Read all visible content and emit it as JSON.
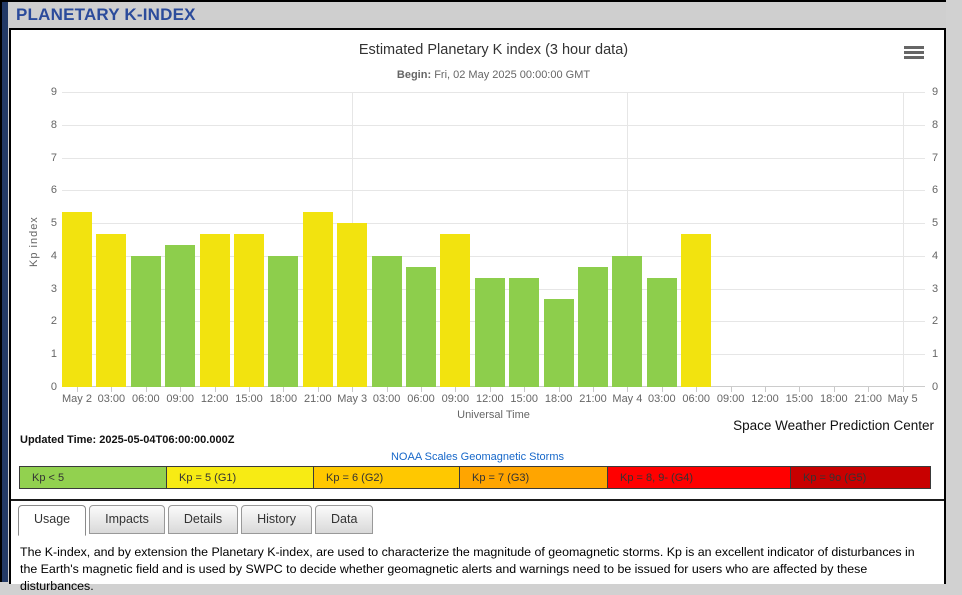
{
  "page": {
    "header_title": "PLANETARY K-INDEX",
    "credit": "Space Weather Prediction Center",
    "updated_time_label": "Updated Time:",
    "updated_time_value": "2025-05-04T06:00:00.000Z",
    "noaa_scales_link": "NOAA Scales Geomagnetic Storms"
  },
  "colors": {
    "header_navy": "#2B4B9B",
    "left_stripe_navy": "#233A66",
    "link_blue": "#1667C9",
    "bar_yellow": "#F2E30F",
    "bar_green": "#8DCE4C",
    "grid_line": "#E6E6E6",
    "axis_text": "#666666",
    "scale_green": "#92D14F",
    "scale_yellow": "#F7EB14",
    "scale_orange": "#FFC800",
    "scale_dark_orange": "#FFA500",
    "scale_red": "#FF0000",
    "scale_dark_red": "#C80000"
  },
  "chart_data": {
    "type": "bar",
    "title": "Estimated Planetary K index (3 hour data)",
    "subtitle": {
      "label": "Begin:",
      "value": "Fri, 02 May 2025 00:00:00 GMT"
    },
    "xlabel": "Universal Time",
    "ylabel": "Kp index",
    "ylim": [
      0,
      9
    ],
    "y_ticks": [
      0,
      1,
      2,
      3,
      4,
      5,
      6,
      7,
      8,
      9
    ],
    "grid": "horizontal gridlines every 1 Kp; vertical gridlines at day boundaries; y labels on both sides",
    "legend_position": "none",
    "x_tick_labels": [
      "May 2",
      "03:00",
      "06:00",
      "09:00",
      "12:00",
      "15:00",
      "18:00",
      "21:00",
      "May 3",
      "03:00",
      "06:00",
      "09:00",
      "12:00",
      "15:00",
      "18:00",
      "21:00",
      "May 4",
      "03:00",
      "06:00",
      "09:00",
      "12:00",
      "15:00",
      "18:00",
      "21:00",
      "May 5"
    ],
    "day_boundary_tick_indices": [
      8,
      16,
      24
    ],
    "bar_color_rule": "yellow if Kp rounds to 5 or more (>= 4.67), green otherwise",
    "bars": [
      {
        "time": "May 2 00:00",
        "kp": 5.33,
        "color": "yellow"
      },
      {
        "time": "May 2 03:00",
        "kp": 4.67,
        "color": "yellow"
      },
      {
        "time": "May 2 06:00",
        "kp": 4.0,
        "color": "green"
      },
      {
        "time": "May 2 09:00",
        "kp": 4.33,
        "color": "green"
      },
      {
        "time": "May 2 12:00",
        "kp": 4.67,
        "color": "yellow"
      },
      {
        "time": "May 2 15:00",
        "kp": 4.67,
        "color": "yellow"
      },
      {
        "time": "May 2 18:00",
        "kp": 4.0,
        "color": "green"
      },
      {
        "time": "May 2 21:00",
        "kp": 5.33,
        "color": "yellow"
      },
      {
        "time": "May 3 00:00",
        "kp": 5.0,
        "color": "yellow"
      },
      {
        "time": "May 3 03:00",
        "kp": 4.0,
        "color": "green"
      },
      {
        "time": "May 3 06:00",
        "kp": 3.67,
        "color": "green"
      },
      {
        "time": "May 3 09:00",
        "kp": 4.67,
        "color": "yellow"
      },
      {
        "time": "May 3 12:00",
        "kp": 3.33,
        "color": "green"
      },
      {
        "time": "May 3 15:00",
        "kp": 3.33,
        "color": "green"
      },
      {
        "time": "May 3 18:00",
        "kp": 2.67,
        "color": "green"
      },
      {
        "time": "May 3 21:00",
        "kp": 3.67,
        "color": "green"
      },
      {
        "time": "May 4 00:00",
        "kp": 4.0,
        "color": "green"
      },
      {
        "time": "May 4 03:00",
        "kp": 3.33,
        "color": "green"
      },
      {
        "time": "May 4 06:00",
        "kp": 4.67,
        "color": "yellow"
      }
    ]
  },
  "scale_legend": {
    "cells": [
      {
        "label": "Kp < 5",
        "color_key": "scale_green"
      },
      {
        "label": "Kp = 5 (G1)",
        "color_key": "scale_yellow"
      },
      {
        "label": "Kp = 6 (G2)",
        "color_key": "scale_orange"
      },
      {
        "label": "Kp = 7 (G3)",
        "color_key": "scale_dark_orange"
      },
      {
        "label": "Kp = 8, 9- (G4)",
        "color_key": "scale_red"
      },
      {
        "label": "Kp = 9o (G5)",
        "color_key": "scale_dark_red"
      }
    ]
  },
  "tabs": {
    "items": [
      {
        "label": "Usage",
        "active": true
      },
      {
        "label": "Impacts",
        "active": false
      },
      {
        "label": "Details",
        "active": false
      },
      {
        "label": "History",
        "active": false
      },
      {
        "label": "Data",
        "active": false
      }
    ]
  },
  "usage_text": "The K-index, and by extension the Planetary K-index, are used to characterize the magnitude of geomagnetic storms. Kp is an excellent indicator of disturbances in the Earth's magnetic field and is used by SWPC to decide whether geomagnetic alerts and warnings need to be issued for users who are affected by these disturbances."
}
